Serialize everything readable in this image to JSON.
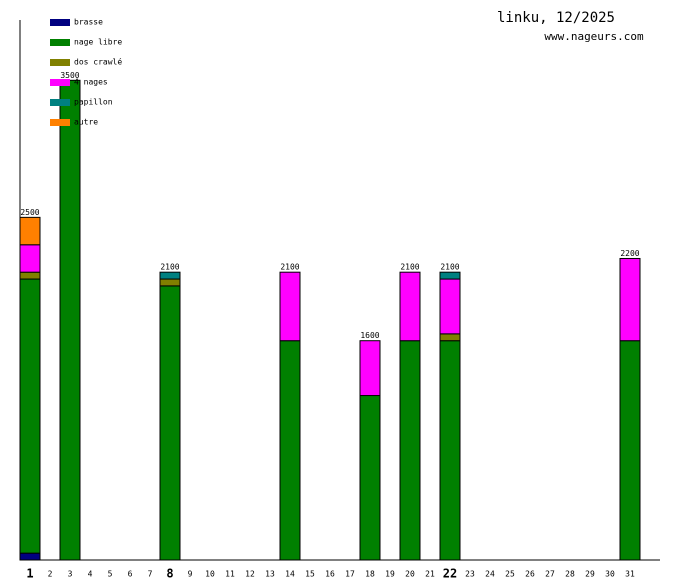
{
  "chart_data": {
    "type": "stacked-bar",
    "title": "linku, 12/2025",
    "subtitle": "www.nageurs.com",
    "categories": [
      "1",
      "2",
      "3",
      "4",
      "5",
      "6",
      "7",
      "8",
      "9",
      "10",
      "11",
      "12",
      "13",
      "14",
      "15",
      "16",
      "17",
      "18",
      "19",
      "20",
      "21",
      "22",
      "23",
      "24",
      "25",
      "26",
      "27",
      "28",
      "29",
      "30",
      "31"
    ],
    "bold_category_indices": [
      0,
      7,
      21
    ],
    "series": [
      {
        "name": "brasse",
        "color": "#000080",
        "values": [
          50,
          0,
          0,
          0,
          0,
          0,
          0,
          0,
          0,
          0,
          0,
          0,
          0,
          0,
          0,
          0,
          0,
          0,
          0,
          0,
          0,
          0,
          0,
          0,
          0,
          0,
          0,
          0,
          0,
          0,
          0
        ]
      },
      {
        "name": "nage libre",
        "color": "#008000",
        "values": [
          2000,
          0,
          3500,
          0,
          0,
          0,
          0,
          2000,
          0,
          0,
          0,
          0,
          0,
          1600,
          0,
          0,
          0,
          1200,
          0,
          1600,
          0,
          1600,
          0,
          0,
          0,
          0,
          0,
          0,
          0,
          0,
          1600
        ]
      },
      {
        "name": "dos crawlé",
        "color": "#808000",
        "values": [
          50,
          0,
          0,
          0,
          0,
          0,
          0,
          50,
          0,
          0,
          0,
          0,
          0,
          0,
          0,
          0,
          0,
          0,
          0,
          0,
          0,
          50,
          0,
          0,
          0,
          0,
          0,
          0,
          0,
          0,
          0
        ]
      },
      {
        "name": "4 nages",
        "color": "#ff00ff",
        "values": [
          200,
          0,
          0,
          0,
          0,
          0,
          0,
          0,
          0,
          0,
          0,
          0,
          0,
          500,
          0,
          0,
          0,
          400,
          0,
          500,
          0,
          400,
          0,
          0,
          0,
          0,
          0,
          0,
          0,
          0,
          600
        ]
      },
      {
        "name": "papillon",
        "color": "#008080",
        "values": [
          0,
          0,
          0,
          0,
          0,
          0,
          0,
          50,
          0,
          0,
          0,
          0,
          0,
          0,
          0,
          0,
          0,
          0,
          0,
          0,
          0,
          50,
          0,
          0,
          0,
          0,
          0,
          0,
          0,
          0,
          0
        ]
      },
      {
        "name": "autre",
        "color": "#ff8000",
        "values": [
          200,
          0,
          0,
          0,
          0,
          0,
          0,
          0,
          0,
          0,
          0,
          0,
          0,
          0,
          0,
          0,
          0,
          0,
          0,
          0,
          0,
          0,
          0,
          0,
          0,
          0,
          0,
          0,
          0,
          0,
          0
        ]
      }
    ],
    "totals": [
      2500,
      null,
      3500,
      null,
      null,
      null,
      null,
      2100,
      null,
      null,
      null,
      null,
      null,
      2100,
      null,
      null,
      null,
      1600,
      null,
      2100,
      null,
      2100,
      null,
      null,
      null,
      null,
      null,
      null,
      null,
      null,
      2200
    ],
    "ylim": [
      0,
      3940
    ]
  }
}
